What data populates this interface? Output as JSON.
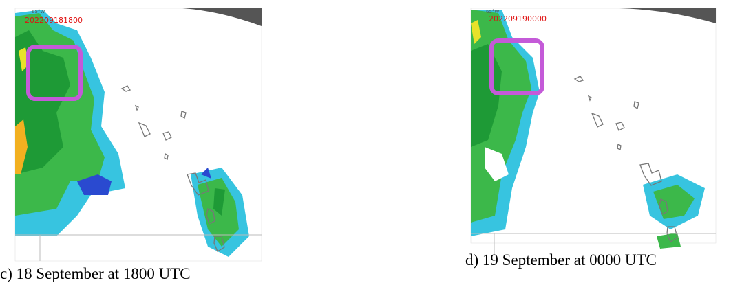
{
  "panels": [
    {
      "longitude_label": "65°W",
      "timestamp": "202209181800",
      "caption": "c) 18 September at 1800 UTC"
    },
    {
      "longitude_label": "65°W",
      "timestamp": "202209190000",
      "caption": "d) 19 September at 0000 UTC"
    }
  ]
}
